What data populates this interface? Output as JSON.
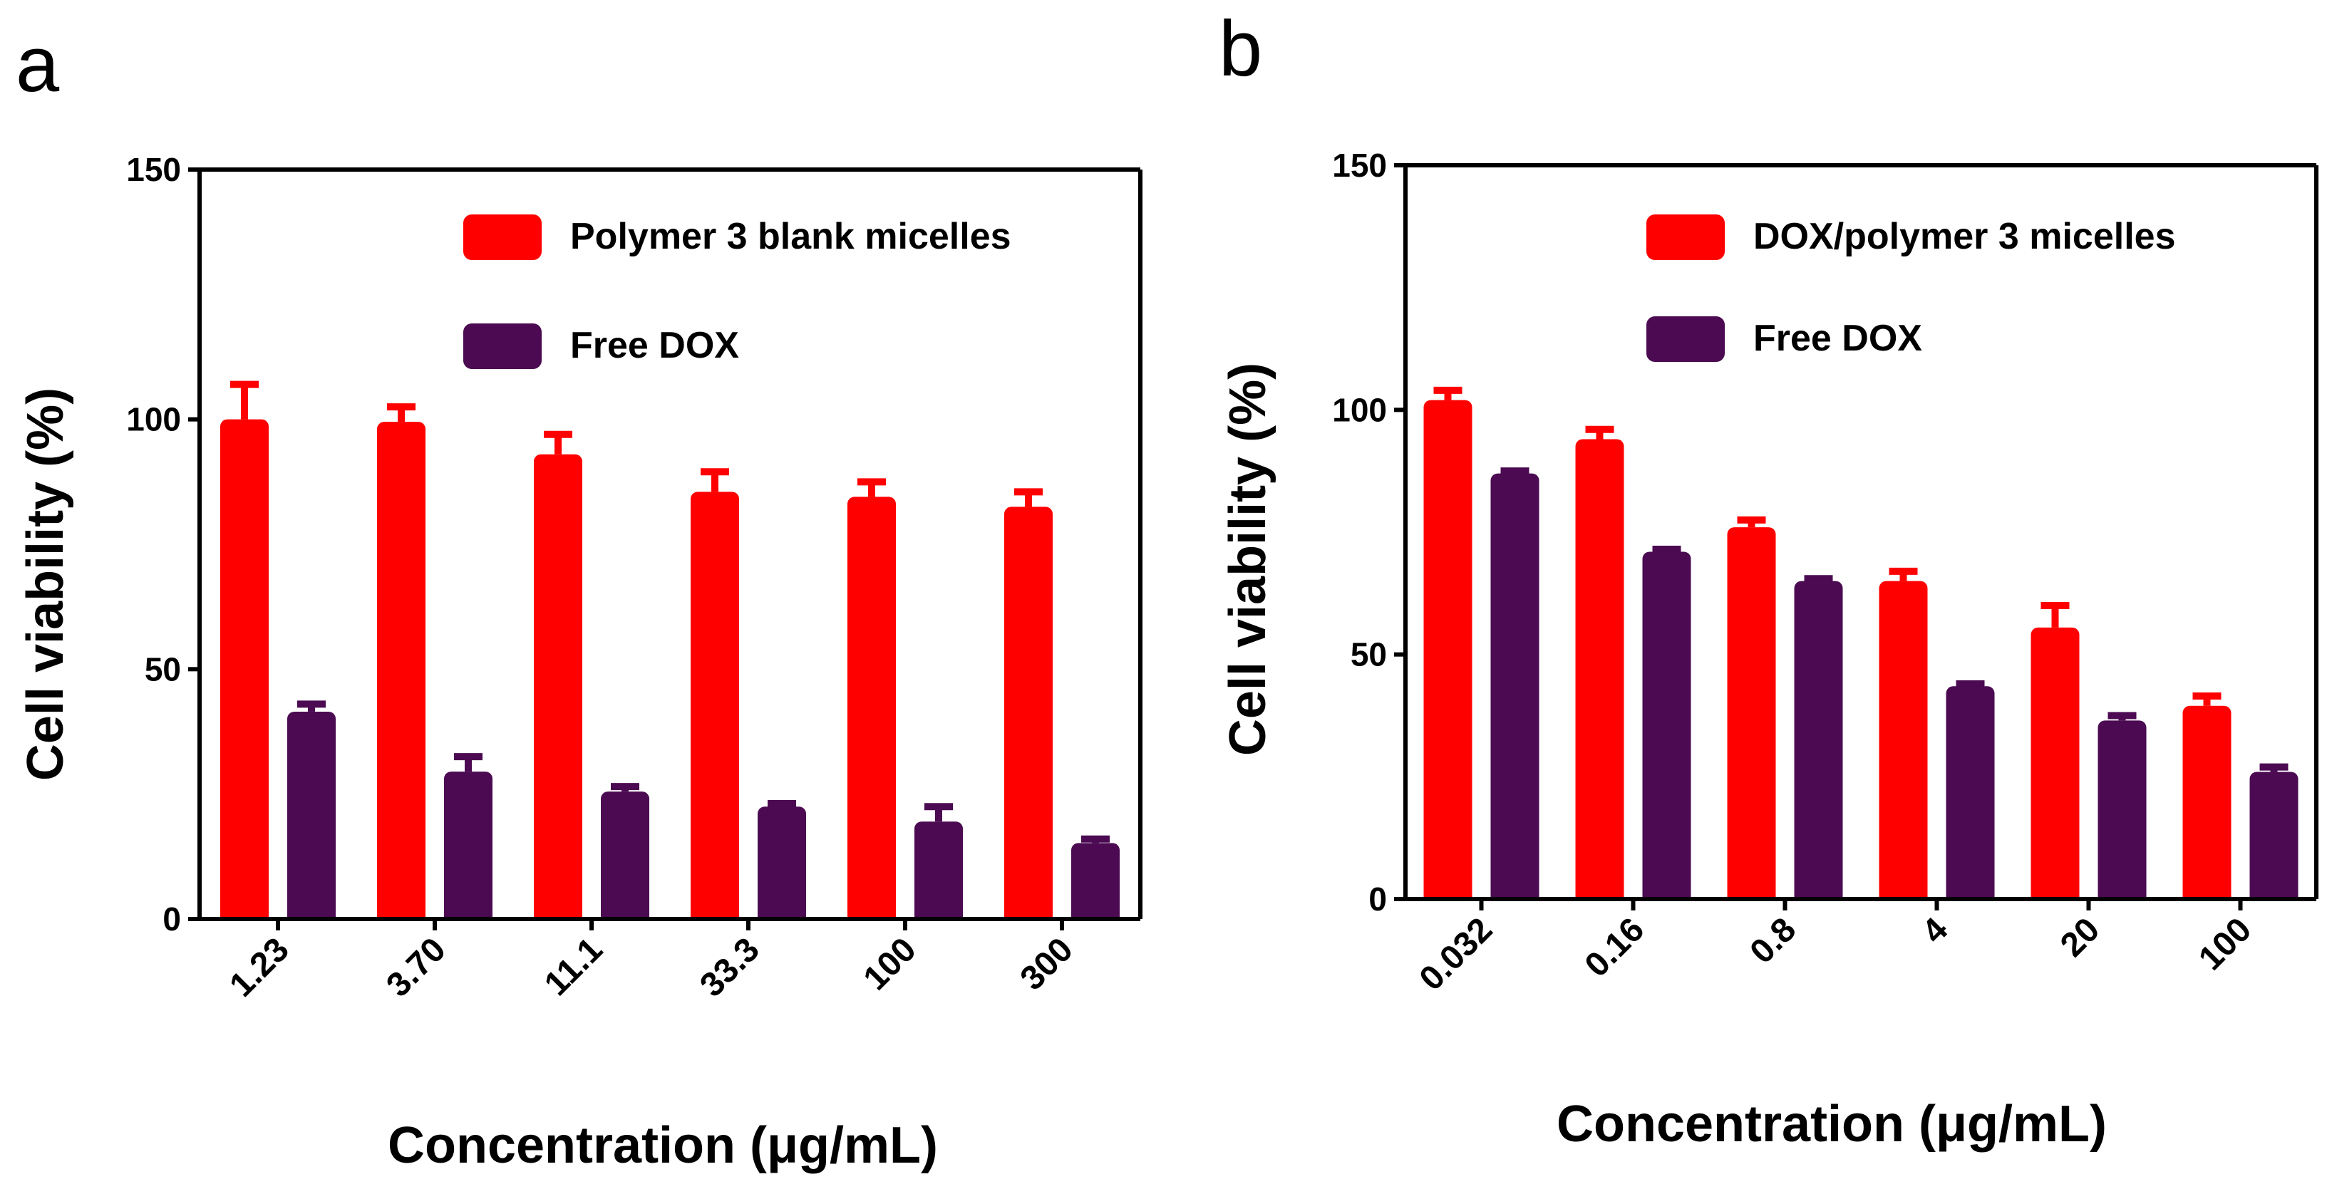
{
  "chart_data": [
    {
      "type": "bar",
      "panel_label": "a",
      "categories": [
        "1.23",
        "3.70",
        "11.1",
        "33.3",
        "100",
        "300"
      ],
      "series": [
        {
          "name": "Polymer 3 blank micelles",
          "values": [
            100,
            99.5,
            93,
            85.5,
            84.5,
            82.5
          ],
          "errors": [
            7,
            3,
            4,
            4,
            3,
            3
          ]
        },
        {
          "name": "Free DOX",
          "values": [
            41.5,
            29.5,
            25.5,
            22.5,
            19.5,
            15.2
          ],
          "errors": [
            1.5,
            3,
            1,
            0.6,
            3,
            0.8
          ]
        }
      ],
      "title": "",
      "xlabel": "Concentration (μg/mL)",
      "ylabel": "Cell viability (%)",
      "ylim": [
        0,
        150
      ],
      "yticks": [
        "0",
        "50",
        "100",
        "150"
      ],
      "legend_position": "top-right",
      "grid": false
    },
    {
      "type": "bar",
      "panel_label": "b",
      "categories": [
        "0.032",
        "0.16",
        "0.8",
        "4",
        "20",
        "100"
      ],
      "series": [
        {
          "name": "DOX/polymer 3 micelles",
          "values": [
            102,
            94,
            76,
            65,
            55.5,
            39.5
          ],
          "errors": [
            2,
            2,
            1.5,
            2,
            4.5,
            2
          ]
        },
        {
          "name": "Free DOX",
          "values": [
            87,
            71,
            65,
            43.5,
            36.5,
            26
          ],
          "errors": [
            0.5,
            0.5,
            0.5,
            0.5,
            1,
            1
          ]
        }
      ],
      "title": "",
      "xlabel": "Concentration (μg/mL)",
      "ylabel": "Cell viability (%)",
      "ylim": [
        0,
        150
      ],
      "yticks": [
        "0",
        "50",
        "100",
        "150"
      ],
      "legend_position": "top-right",
      "grid": false
    }
  ],
  "colors": {
    "series_1": "#ff0000",
    "series_2": "#4b0a52",
    "axis": "#000000"
  }
}
